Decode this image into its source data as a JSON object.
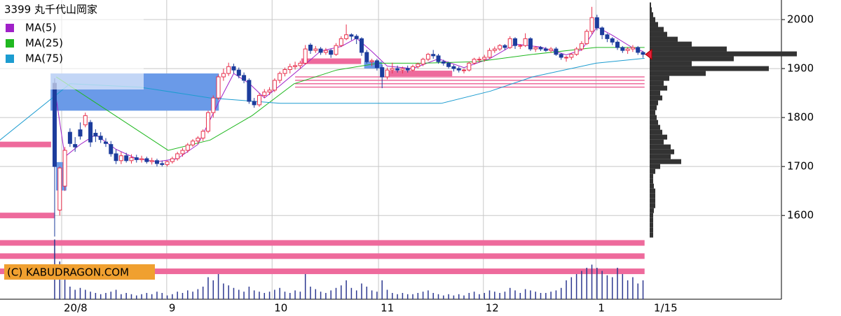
{
  "chart_data": {
    "type": "candlestick",
    "title": "3399 丸千代山岡家",
    "watermark": "(C) KABUDRAGON.COM",
    "xlim": [
      -10.68,
      142.05
    ],
    "ylim": [
      1429,
      2040
    ],
    "yticks": [
      1600,
      1700,
      1800,
      1900,
      2000
    ],
    "xticks": [
      {
        "value": 1.37,
        "label": "20/8"
      },
      {
        "value": 21.9,
        "label": "9"
      },
      {
        "value": 42.5,
        "label": "10"
      },
      {
        "value": 63.3,
        "label": "11"
      },
      {
        "value": 83.8,
        "label": "12"
      },
      {
        "value": 105.8,
        "label": "1"
      },
      {
        "value": 116.7,
        "label": "1/15"
      }
    ],
    "up_color": "#e8304c",
    "down_color": "#1c3c9c",
    "candles": [
      [
        1870,
        1880,
        1557,
        1700
      ],
      [
        1611,
        1700,
        1600,
        1697
      ],
      [
        1660,
        1740,
        1650,
        1733
      ],
      [
        1770,
        1778,
        1740,
        1747
      ],
      [
        1745,
        1760,
        1730,
        1740
      ],
      [
        1775,
        1790,
        1755,
        1762
      ],
      [
        1785,
        1810,
        1780,
        1804
      ],
      [
        1790,
        1795,
        1740,
        1750
      ],
      [
        1768,
        1776,
        1750,
        1762
      ],
      [
        1762,
        1770,
        1748,
        1755
      ],
      [
        1750,
        1758,
        1740,
        1747
      ],
      [
        1745,
        1752,
        1720,
        1726
      ],
      [
        1726,
        1735,
        1705,
        1712
      ],
      [
        1712,
        1730,
        1705,
        1722
      ],
      [
        1722,
        1728,
        1708,
        1712
      ],
      [
        1712,
        1725,
        1706,
        1718
      ],
      [
        1718,
        1724,
        1708,
        1714
      ],
      [
        1714,
        1722,
        1708,
        1716
      ],
      [
        1716,
        1720,
        1706,
        1710
      ],
      [
        1710,
        1718,
        1704,
        1712
      ],
      [
        1712,
        1716,
        1700,
        1706
      ],
      [
        1706,
        1712,
        1700,
        1704
      ],
      [
        1704,
        1712,
        1700,
        1710
      ],
      [
        1710,
        1720,
        1706,
        1716
      ],
      [
        1716,
        1730,
        1712,
        1726
      ],
      [
        1726,
        1738,
        1720,
        1733
      ],
      [
        1733,
        1748,
        1728,
        1744
      ],
      [
        1744,
        1756,
        1740,
        1752
      ],
      [
        1752,
        1762,
        1746,
        1758
      ],
      [
        1758,
        1776,
        1752,
        1772
      ],
      [
        1772,
        1814,
        1768,
        1810
      ],
      [
        1810,
        1845,
        1800,
        1840
      ],
      [
        1840,
        1888,
        1836,
        1883
      ],
      [
        1883,
        1900,
        1875,
        1890
      ],
      [
        1890,
        1912,
        1885,
        1904
      ],
      [
        1904,
        1910,
        1890,
        1897
      ],
      [
        1897,
        1902,
        1880,
        1886
      ],
      [
        1886,
        1892,
        1870,
        1876
      ],
      [
        1876,
        1880,
        1828,
        1833
      ],
      [
        1833,
        1840,
        1820,
        1826
      ],
      [
        1826,
        1850,
        1822,
        1845
      ],
      [
        1845,
        1858,
        1840,
        1852
      ],
      [
        1852,
        1862,
        1846,
        1856
      ],
      [
        1856,
        1880,
        1852,
        1876
      ],
      [
        1876,
        1894,
        1870,
        1890
      ],
      [
        1890,
        1902,
        1884,
        1898
      ],
      [
        1898,
        1910,
        1890,
        1904
      ],
      [
        1904,
        1914,
        1898,
        1906
      ],
      [
        1906,
        1916,
        1900,
        1911
      ],
      [
        1911,
        1948,
        1908,
        1940
      ],
      [
        1948,
        1952,
        1930,
        1937
      ],
      [
        1937,
        1946,
        1932,
        1940
      ],
      [
        1940,
        1944,
        1928,
        1933
      ],
      [
        1933,
        1942,
        1928,
        1937
      ],
      [
        1937,
        1940,
        1922,
        1929
      ],
      [
        1929,
        1952,
        1926,
        1947
      ],
      [
        1947,
        1966,
        1944,
        1961
      ],
      [
        1961,
        1990,
        1958,
        1969
      ],
      [
        1969,
        1972,
        1958,
        1966
      ],
      [
        1966,
        1970,
        1950,
        1961
      ],
      [
        1961,
        1964,
        1926,
        1933
      ],
      [
        1933,
        1938,
        1910,
        1914
      ],
      [
        1914,
        1920,
        1905,
        1916
      ],
      [
        1916,
        1920,
        1896,
        1902
      ],
      [
        1902,
        1908,
        1860,
        1883
      ],
      [
        1883,
        1902,
        1878,
        1897
      ],
      [
        1897,
        1912,
        1890,
        1900
      ],
      [
        1900,
        1906,
        1892,
        1897
      ],
      [
        1897,
        1904,
        1890,
        1900
      ],
      [
        1900,
        1906,
        1892,
        1897
      ],
      [
        1897,
        1908,
        1894,
        1904
      ],
      [
        1904,
        1912,
        1900,
        1909
      ],
      [
        1909,
        1922,
        1905,
        1919
      ],
      [
        1919,
        1932,
        1915,
        1929
      ],
      [
        1929,
        1938,
        1920,
        1926
      ],
      [
        1926,
        1930,
        1910,
        1914
      ],
      [
        1914,
        1918,
        1906,
        1911
      ],
      [
        1911,
        1914,
        1900,
        1904
      ],
      [
        1904,
        1908,
        1894,
        1900
      ],
      [
        1900,
        1904,
        1892,
        1897
      ],
      [
        1897,
        1900,
        1890,
        1897
      ],
      [
        1897,
        1914,
        1894,
        1911
      ],
      [
        1911,
        1922,
        1908,
        1919
      ],
      [
        1919,
        1924,
        1912,
        1919
      ],
      [
        1919,
        1928,
        1914,
        1923
      ],
      [
        1923,
        1942,
        1920,
        1937
      ],
      [
        1937,
        1945,
        1932,
        1940
      ],
      [
        1940,
        1950,
        1936,
        1947
      ],
      [
        1947,
        1950,
        1938,
        1943
      ],
      [
        1943,
        1966,
        1940,
        1961
      ],
      [
        1961,
        1964,
        1940,
        1947
      ],
      [
        1947,
        1950,
        1940,
        1947
      ],
      [
        1947,
        1972,
        1944,
        1961
      ],
      [
        1961,
        1964,
        1936,
        1940
      ],
      [
        1940,
        1946,
        1934,
        1943
      ],
      [
        1943,
        1946,
        1936,
        1940
      ],
      [
        1940,
        1944,
        1934,
        1937
      ],
      [
        1937,
        1944,
        1932,
        1940
      ],
      [
        1940,
        1944,
        1926,
        1929
      ],
      [
        1929,
        1932,
        1918,
        1923
      ],
      [
        1923,
        1926,
        1914,
        1923
      ],
      [
        1923,
        1932,
        1918,
        1929
      ],
      [
        1929,
        1944,
        1926,
        1940
      ],
      [
        1940,
        1956,
        1936,
        1951
      ],
      [
        1951,
        1980,
        1948,
        1976
      ],
      [
        1976,
        2026,
        1970,
        2004
      ],
      [
        2004,
        2010,
        1978,
        1983
      ],
      [
        1983,
        1986,
        1960,
        1969
      ],
      [
        1969,
        1972,
        1954,
        1961
      ],
      [
        1961,
        1964,
        1948,
        1954
      ],
      [
        1954,
        1958,
        1938,
        1943
      ],
      [
        1943,
        1946,
        1932,
        1937
      ],
      [
        1937,
        1944,
        1930,
        1940
      ],
      [
        1940,
        1948,
        1934,
        1943
      ],
      [
        1943,
        1946,
        1928,
        1933
      ],
      [
        1933,
        1936,
        1922,
        1929
      ]
    ],
    "volume": {
      "color": "#2c3890",
      "vlim": [
        0,
        100
      ],
      "values": [
        95,
        60,
        35,
        20,
        15,
        18,
        15,
        12,
        10,
        8,
        10,
        12,
        15,
        8,
        10,
        8,
        6,
        8,
        10,
        8,
        12,
        10,
        6,
        8,
        12,
        10,
        14,
        12,
        16,
        20,
        35,
        30,
        40,
        25,
        22,
        18,
        15,
        12,
        20,
        14,
        12,
        10,
        12,
        15,
        18,
        12,
        10,
        14,
        12,
        40,
        20,
        16,
        12,
        10,
        14,
        18,
        22,
        30,
        18,
        14,
        25,
        20,
        14,
        12,
        30,
        15,
        10,
        8,
        10,
        8,
        8,
        10,
        12,
        14,
        10,
        8,
        6,
        8,
        6,
        8,
        6,
        10,
        12,
        8,
        10,
        14,
        12,
        10,
        12,
        18,
        14,
        10,
        16,
        14,
        12,
        10,
        10,
        12,
        14,
        18,
        30,
        35,
        40,
        45,
        50,
        55,
        50,
        45,
        38,
        35,
        50,
        40,
        30,
        35,
        25,
        30
      ]
    },
    "series": [
      {
        "name": "MA(5)",
        "color": "#a020c8",
        "x": [
          0,
          2,
          5,
          8,
          12,
          16,
          20,
          24,
          28,
          32,
          35,
          38,
          41,
          44,
          48,
          52,
          56,
          59,
          62,
          65,
          70,
          75,
          80,
          85,
          90,
          95,
          100,
          103,
          106,
          109,
          113,
          115
        ],
        "values": [
          1860,
          1720,
          1745,
          1765,
          1735,
          1716,
          1710,
          1716,
          1745,
          1830,
          1890,
          1870,
          1840,
          1865,
          1900,
          1936,
          1945,
          1962,
          1935,
          1905,
          1900,
          1920,
          1902,
          1920,
          1950,
          1944,
          1928,
          1938,
          1985,
          1968,
          1942,
          1935
        ]
      },
      {
        "name": "MA(25)",
        "color": "#20b820",
        "x": [
          0.3,
          22.2,
          30.4,
          38.6,
          46.8,
          55.1,
          63.3,
          71.5,
          82.5,
          93.4,
          105.8,
          115.3
        ],
        "values": [
          1883,
          1733,
          1754,
          1804,
          1869,
          1897,
          1911,
          1911,
          1914,
          1929,
          1943,
          1943
        ]
      },
      {
        "name": "MA(75)",
        "color": "#1c9cd0",
        "x": [
          -10.7,
          3,
          16.7,
          30.4,
          44.1,
          75.6,
          85.2,
          93.4,
          105.8,
          115.3
        ],
        "values": [
          1754,
          1869,
          1862,
          1840,
          1829,
          1829,
          1854,
          1883,
          1911,
          1921
        ]
      }
    ],
    "bands": {
      "color": "#ee6a9c",
      "items": [
        {
          "price": 1745,
          "from": -10.7,
          "to": -0.7
        },
        {
          "price": 1600,
          "from": -10.7,
          "to": 0
        },
        {
          "price": 1544,
          "from": -10.7,
          "to": 115.3
        },
        {
          "price": 1517,
          "from": -10.7,
          "to": 115.3
        },
        {
          "price": 1486,
          "from": -10.7,
          "to": 115.3
        },
        {
          "price": 1915,
          "from": 48.2,
          "to": 59.9
        },
        {
          "price": 1890,
          "from": 65.1,
          "to": 77.7
        }
      ]
    },
    "lines": {
      "color": "#ee6a9c",
      "items": [
        {
          "price": 1883,
          "from": 47,
          "to": 115.3
        },
        {
          "price": 1876,
          "from": 47,
          "to": 115.3
        },
        {
          "price": 1869,
          "from": 47,
          "to": 115.3
        },
        {
          "price": 1862,
          "from": 47,
          "to": 115.3
        }
      ]
    },
    "boxes": {
      "color": "#6a9ae8",
      "items": [
        {
          "from": -0.8,
          "to": 32.1,
          "low": 1814,
          "high": 1890
        },
        {
          "from": 0.27,
          "to": 2.3,
          "low": 1651,
          "high": 1709
        },
        {
          "from": 60.5,
          "to": 64,
          "low": 1900,
          "high": 1914
        }
      ]
    },
    "profile": {
      "color": "#333333",
      "vlim": [
        0,
        220
      ],
      "levels": [
        1560,
        1570,
        1580,
        1590,
        1600,
        1610,
        1620,
        1630,
        1640,
        1650,
        1660,
        1670,
        1680,
        1690,
        1700,
        1710,
        1720,
        1730,
        1740,
        1750,
        1760,
        1770,
        1780,
        1790,
        1800,
        1810,
        1820,
        1830,
        1840,
        1850,
        1860,
        1870,
        1880,
        1890,
        1900,
        1910,
        1920,
        1930,
        1940,
        1950,
        1960,
        1970,
        1980,
        1990,
        2000,
        2010,
        2020,
        2030
      ],
      "values": [
        5,
        5,
        5,
        5,
        5,
        6,
        8,
        8,
        8,
        8,
        6,
        5,
        5,
        8,
        15,
        45,
        30,
        35,
        30,
        20,
        25,
        18,
        15,
        12,
        10,
        8,
        10,
        12,
        18,
        15,
        25,
        20,
        28,
        80,
        170,
        60,
        120,
        210,
        110,
        60,
        40,
        25,
        20,
        12,
        8,
        5,
        3,
        2
      ]
    },
    "current_price": 1929,
    "grid": true
  }
}
